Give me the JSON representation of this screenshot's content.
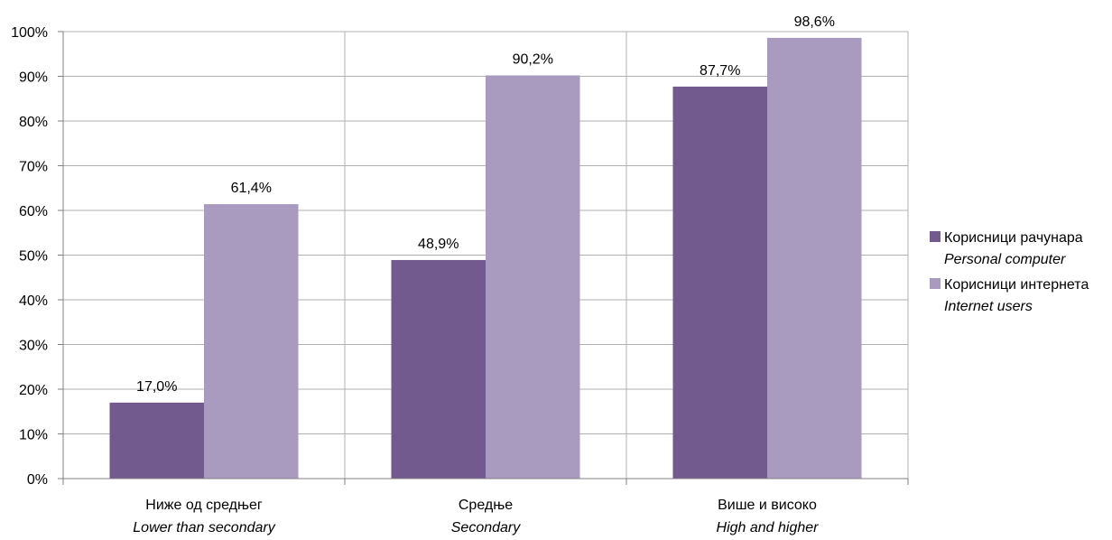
{
  "chart_data": {
    "type": "bar",
    "title": "",
    "xlabel": "",
    "ylabel": "",
    "ylim": [
      0,
      100
    ],
    "y_ticks": [
      "0%",
      "10%",
      "20%",
      "30%",
      "40%",
      "50%",
      "60%",
      "70%",
      "80%",
      "90%",
      "100%"
    ],
    "grid": "horizontal",
    "legend_position": "right",
    "categories": [
      {
        "label": "Ниже од средњег",
        "label_en": "Lower than secondary"
      },
      {
        "label": "Средње",
        "label_en": "Secondary"
      },
      {
        "label": "Више и високо",
        "label_en": "High and higher"
      }
    ],
    "series": [
      {
        "name": "Корисници рачунара",
        "name_en": "Personal computer",
        "color": "#725a8f",
        "values": [
          17.0,
          48.9,
          87.7
        ],
        "labels": [
          "17,0%",
          "48,9%",
          "87,7%"
        ]
      },
      {
        "name": "Корисници интернета",
        "name_en": "Internet users",
        "color": "#a89bbf",
        "values": [
          61.4,
          90.2,
          98.6
        ],
        "labels": [
          "61,4%",
          "90,2%",
          "98,6%"
        ]
      }
    ]
  }
}
